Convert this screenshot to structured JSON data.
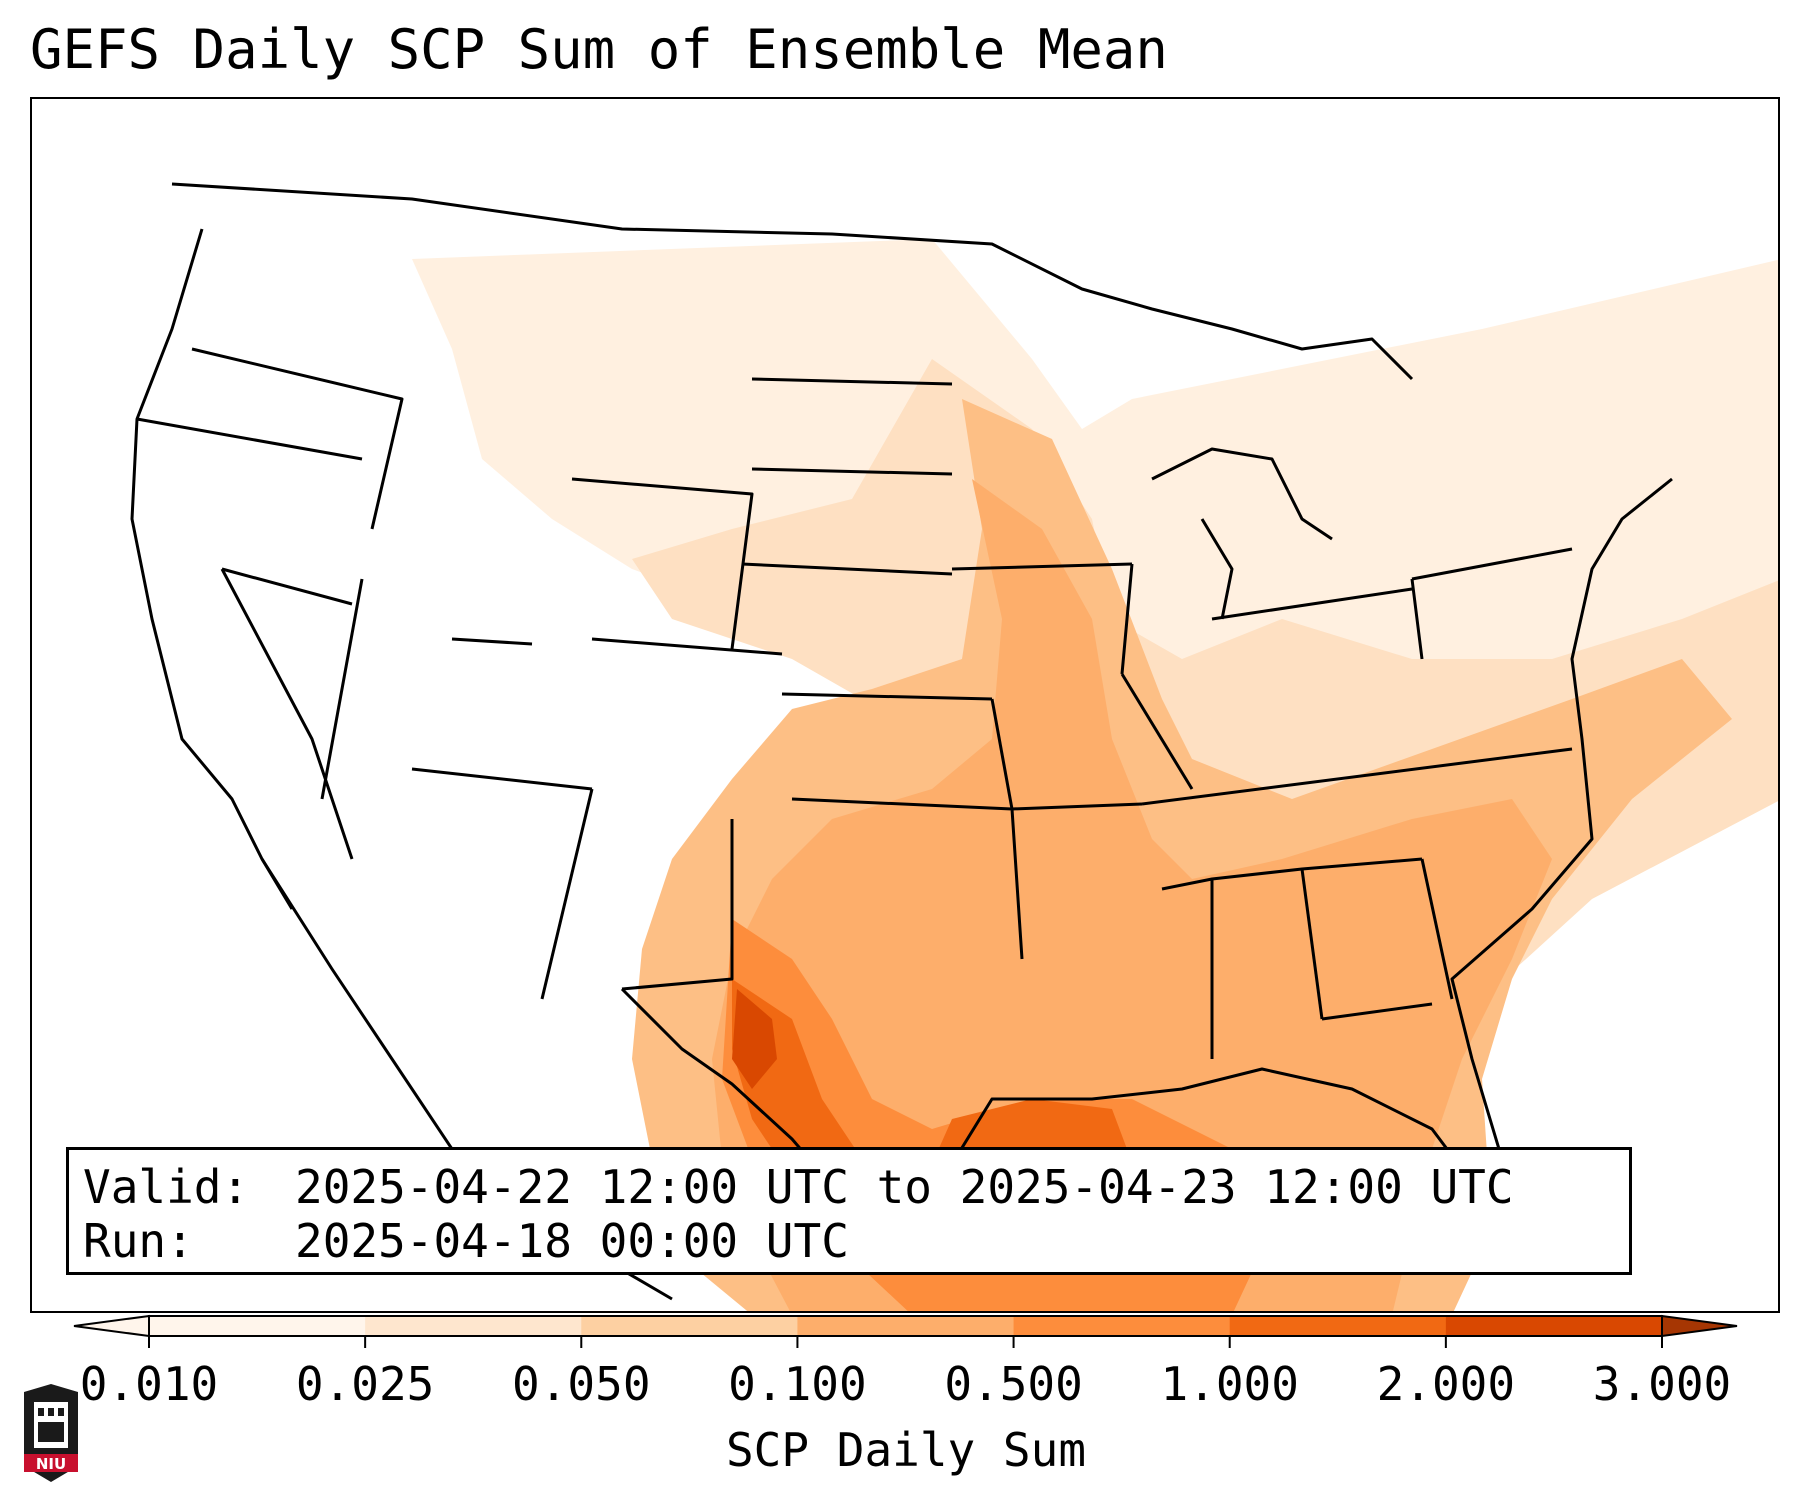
{
  "title": "GEFS Daily SCP Sum of Ensemble Mean",
  "info": {
    "valid_key": "Valid:",
    "valid_value": "2025-04-22 12:00 UTC to 2025-04-23 12:00 UTC",
    "run_key": "Run:",
    "run_value": "2025-04-18 00:00 UTC"
  },
  "colorbar": {
    "label": "SCP Daily Sum",
    "ticks": [
      "0.010",
      "0.025",
      "0.050",
      "0.100",
      "0.500",
      "1.000",
      "2.000",
      "3.000"
    ],
    "colors": [
      "#fff5eb",
      "#fee6ce",
      "#fdd0a2",
      "#fdae6b",
      "#fd8d3c",
      "#f16913",
      "#d94801",
      "#a63603"
    ],
    "extend": "both"
  },
  "logo": {
    "text": "NIU",
    "color": "#c8102e"
  },
  "map_fill": {
    "region": "United States",
    "variable": "SCP daily sum",
    "levels": [
      "0.010",
      "0.025",
      "0.050",
      "0.100",
      "0.500",
      "1.000",
      "2.000"
    ]
  }
}
